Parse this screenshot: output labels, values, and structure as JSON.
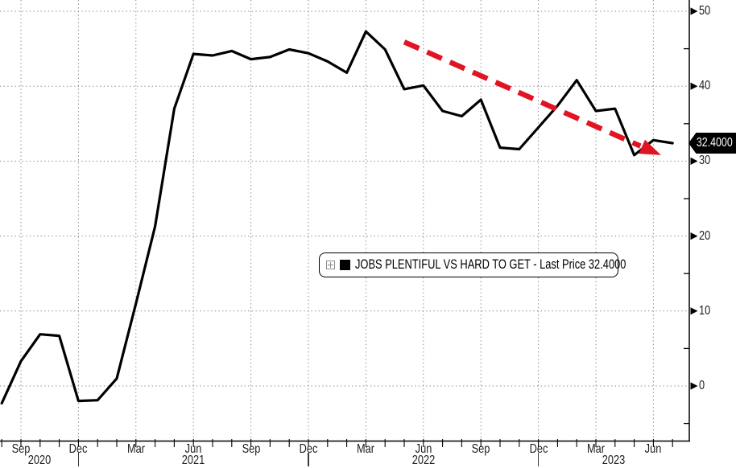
{
  "chart_data": {
    "type": "line",
    "title": "JOBS PLENTIFUL VS HARD TO GET - Last Price 32.4000",
    "x": [
      "Aug 2020",
      "Sep 2020",
      "Oct 2020",
      "Nov 2020",
      "Dec 2020",
      "Jan 2021",
      "Feb 2021",
      "Mar 2021",
      "Apr 2021",
      "May 2021",
      "Jun 2021",
      "Jul 2021",
      "Aug 2021",
      "Sep 2021",
      "Oct 2021",
      "Nov 2021",
      "Dec 2021",
      "Jan 2022",
      "Feb 2022",
      "Mar 2022",
      "Apr 2022",
      "May 2022",
      "Jun 2022",
      "Jul 2022",
      "Aug 2022",
      "Sep 2022",
      "Oct 2022",
      "Nov 2022",
      "Dec 2022",
      "Jan 2023",
      "Feb 2023",
      "Mar 2023",
      "Apr 2023",
      "May 2023",
      "Jun 2023",
      "Jul 2023"
    ],
    "series": [
      {
        "name": "JOBS PLENTIFUL VS HARD TO GET",
        "color": "#000000",
        "values": [
          -2.3,
          3.3,
          6.9,
          6.7,
          -2.0,
          -1.9,
          1.0,
          11.0,
          21.3,
          37.0,
          44.3,
          44.1,
          44.7,
          43.6,
          43.9,
          44.9,
          44.4,
          43.3,
          41.8,
          47.3,
          44.9,
          39.6,
          40.1,
          36.7,
          36.0,
          38.2,
          31.8,
          31.6,
          34.5,
          37.4,
          40.8,
          36.7,
          37.0,
          30.8,
          32.8,
          32.4
        ]
      }
    ],
    "last_price": 32.4,
    "y_ticks": [
      0,
      10,
      20,
      30,
      40,
      50
    ],
    "y_minor_ticks": [
      -5,
      5,
      15,
      25,
      35,
      45
    ],
    "ylim": [
      -7.3,
      51.6
    ],
    "grid": "dotted",
    "legend_position": "center",
    "x_quarter_ticks": [
      {
        "i": 1,
        "label": "Sep"
      },
      {
        "i": 4,
        "label": "Dec"
      },
      {
        "i": 7,
        "label": "Mar"
      },
      {
        "i": 10,
        "label": "Jun"
      },
      {
        "i": 13,
        "label": "Sep"
      },
      {
        "i": 16,
        "label": "Dec"
      },
      {
        "i": 19,
        "label": "Mar"
      },
      {
        "i": 22,
        "label": "Jun"
      },
      {
        "i": 25,
        "label": "Sep"
      },
      {
        "i": 28,
        "label": "Dec"
      },
      {
        "i": 31,
        "label": "Mar"
      },
      {
        "i": 34,
        "label": "Jun"
      }
    ],
    "year_labels": [
      {
        "label": "2020"
      },
      {
        "label": "2021"
      },
      {
        "label": "2022"
      },
      {
        "label": "2023"
      }
    ],
    "annotations": [
      {
        "type": "downtrend-dashed-arrow",
        "style": "dashed",
        "color": "#e11423",
        "from": {
          "x_index": 21,
          "value": 45.9
        },
        "to": {
          "x_index": 34.4,
          "value": 30.8
        }
      }
    ]
  },
  "legend": {
    "label": "JOBS PLENTIFUL VS HARD TO GET - Last Price 32.4000",
    "swatch_color": "#000000"
  },
  "last_price_tag": {
    "value": "32.4000",
    "bg": "#000000",
    "text_color": "#ffffff"
  }
}
